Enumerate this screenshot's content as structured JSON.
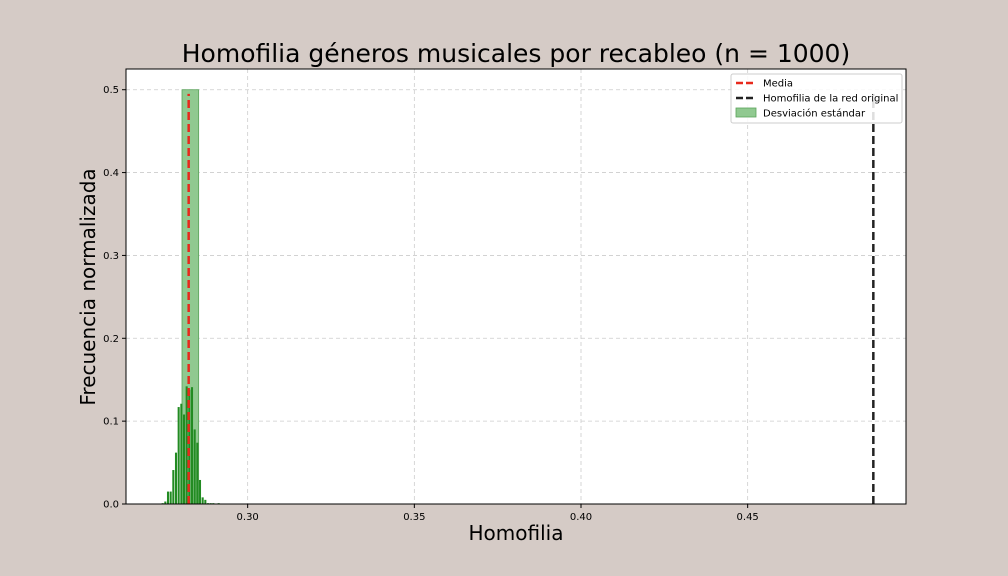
{
  "chart_data": {
    "type": "bar",
    "title": "Homofilia géneros musicales por recableo (n = 1000)",
    "xlabel": "Homofilia",
    "ylabel": "Frecuencia normalizada",
    "xlim": [
      0.2635,
      0.4975
    ],
    "ylim": [
      0,
      0.525
    ],
    "xticks": [
      0.3,
      0.35,
      0.4,
      0.45
    ],
    "xtick_labels": [
      "0.30",
      "0.35",
      "0.40",
      "0.45"
    ],
    "yticks": [
      0.0,
      0.1,
      0.2,
      0.3,
      0.4,
      0.5
    ],
    "ytick_labels": [
      "0.0",
      "0.1",
      "0.2",
      "0.3",
      "0.4",
      "0.5"
    ],
    "grid": true,
    "legend_position": "top-right",
    "histogram": {
      "name": "",
      "color": "#228b22",
      "bin_width": 0.0008,
      "x": [
        0.2745,
        0.2753,
        0.2761,
        0.2769,
        0.2777,
        0.2785,
        0.2793,
        0.2801,
        0.2809,
        0.2817,
        0.2825,
        0.2833,
        0.2841,
        0.2849,
        0.2857,
        0.2865,
        0.2873,
        0.2881,
        0.2889,
        0.2897,
        0.2905,
        0.2913,
        0.2921
      ],
      "values": [
        0.001,
        0.003,
        0.015,
        0.015,
        0.041,
        0.062,
        0.117,
        0.121,
        0.108,
        0.142,
        0.138,
        0.141,
        0.09,
        0.074,
        0.029,
        0.008,
        0.005,
        0.001,
        0.001,
        0.001,
        0,
        0.001,
        0
      ]
    },
    "mean": {
      "label": "Media",
      "value": 0.2823,
      "color": "#e8291c",
      "y_top": 0.495
    },
    "original": {
      "label": "Homofilia de la red original",
      "value": 0.4877,
      "color": "#222222",
      "y_top": 0.495
    },
    "std_band": {
      "label": "Desviación estándar",
      "x_from": 0.2803,
      "x_to": 0.2853,
      "height": 0.5,
      "color": "#90c990"
    }
  }
}
